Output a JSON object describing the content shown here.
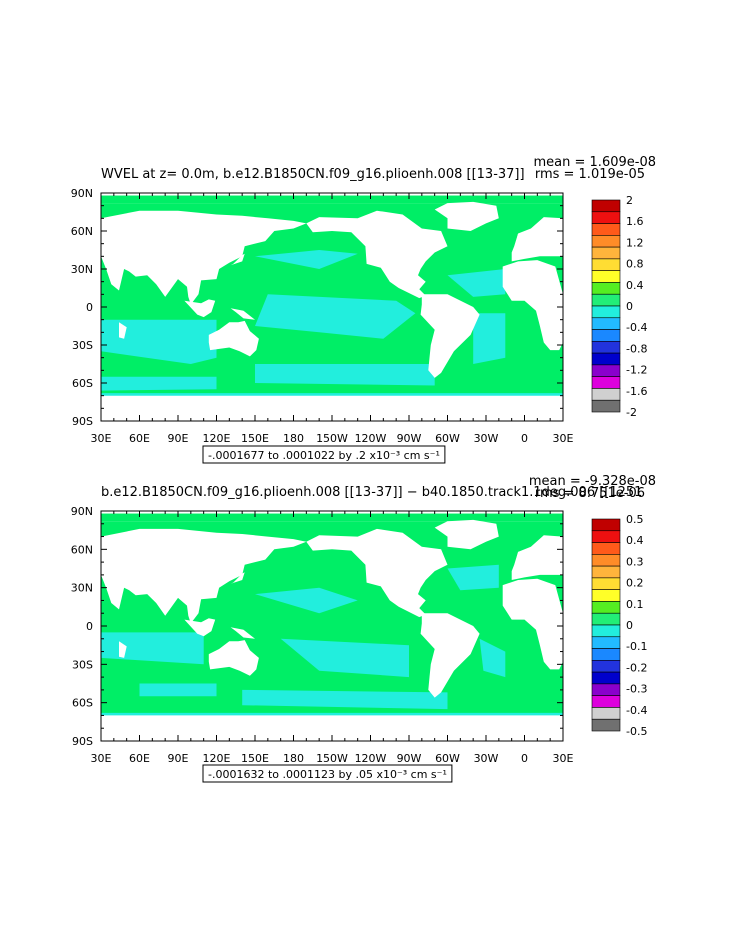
{
  "chart_data": [
    {
      "type": "heatmap",
      "title_left": "WVEL at z=    0.0m, b.e12.B1850CN.f09_g16.plioenh.008 [[13-37]]",
      "stat_mean": "mean = 1.609e-08",
      "stat_rms": "rms = 1.019e-05",
      "subtitle": "-.0001677 to .0001022 by .2 x10⁻³ cm s⁻¹",
      "x_ticks": [
        "30E",
        "60E",
        "90E",
        "120E",
        "150E",
        "180",
        "150W",
        "120W",
        "90W",
        "60W",
        "30W",
        "0",
        "30E"
      ],
      "y_ticks": [
        "90N",
        "60N",
        "30N",
        "0",
        "30S",
        "60S",
        "90S"
      ],
      "colorbar": {
        "labels": [
          "2",
          "1.6",
          "1.2",
          "0.8",
          "0.4",
          "0",
          "-0.4",
          "-0.8",
          "-1.2",
          "-1.6",
          "-2"
        ],
        "colors": [
          "#c00000",
          "#ee1010",
          "#ff5a1a",
          "#ff8c28",
          "#ffb43c",
          "#ffdd33",
          "#ffff28",
          "#55ee22",
          "#22ee77",
          "#22eedd",
          "#22bbff",
          "#1a88ff",
          "#2233dd",
          "#0000cc",
          "#8a00cc",
          "#dd00dd",
          "#d0d0d0",
          "#707070"
        ]
      },
      "field_colors": {
        "ocean_main": "#00ee66",
        "ocean_low": "#22eedd"
      }
    },
    {
      "type": "heatmap",
      "title_left": "b.e12.B1850CN.f09_g16.plioenh.008 [[13-37]] − b40.1850.track1.1deg.006 [[1251",
      "stat_mean": "mean = -9.328e-08",
      "stat_rms": "rms = 8.751e-06",
      "subtitle": "-.0001632 to .0001123 by .05 x10⁻³ cm s⁻¹",
      "x_ticks": [
        "30E",
        "60E",
        "90E",
        "120E",
        "150E",
        "180",
        "150W",
        "120W",
        "90W",
        "60W",
        "30W",
        "0",
        "30E"
      ],
      "y_ticks": [
        "90N",
        "60N",
        "30N",
        "0",
        "30S",
        "60S",
        "90S"
      ],
      "colorbar": {
        "labels": [
          "0.5",
          "0.4",
          "0.3",
          "0.2",
          "0.1",
          "0",
          "-0.1",
          "-0.2",
          "-0.3",
          "-0.4",
          "-0.5"
        ],
        "colors": [
          "#c00000",
          "#ee1010",
          "#ff5a1a",
          "#ff8c28",
          "#ffb43c",
          "#ffdd33",
          "#ffff28",
          "#55ee22",
          "#22ee77",
          "#22eedd",
          "#22bbff",
          "#1a88ff",
          "#2233dd",
          "#0000cc",
          "#8a00cc",
          "#dd00dd",
          "#d0d0d0",
          "#707070"
        ]
      },
      "field_colors": {
        "ocean_main": "#00ee66",
        "ocean_low": "#22eedd"
      }
    }
  ]
}
